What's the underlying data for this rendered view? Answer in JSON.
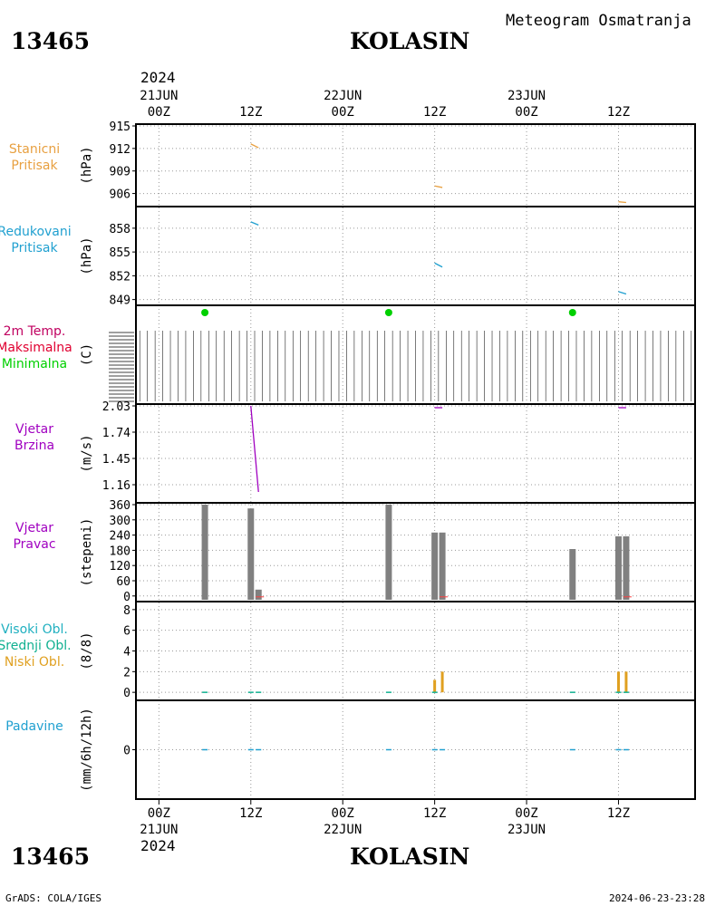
{
  "header": {
    "station_id": "13465",
    "station_name": "KOLASIN",
    "product": "Meteogram Osmatranja",
    "year": "2024"
  },
  "footer": {
    "station_id": "13465",
    "station_name": "KOLASIN",
    "credit": "GrADS: COLA/IGES",
    "timestamp": "2024-06-23-23:28",
    "year": "2024"
  },
  "colors": {
    "pressure_station": "#e8a040",
    "pressure_reduced": "#20a0d0",
    "temp_label": "#c00060",
    "temp_max": "#e00030",
    "temp_min": "#00d000",
    "wind": "#a000c0",
    "wind_dir_bar": "#808080",
    "wind_dir_red": "#ff4040",
    "cloud_high": "#20b0c0",
    "cloud_mid": "#10b090",
    "cloud_low": "#e0a020",
    "precip": "#20a0d0"
  },
  "chart_data": {
    "type": "line",
    "time_axis": {
      "top_labels": [
        {
          "hour": "00Z",
          "date": "21JUN"
        },
        {
          "hour": "12Z",
          "date": ""
        },
        {
          "hour": "00Z",
          "date": "22JUN"
        },
        {
          "hour": "12Z",
          "date": ""
        },
        {
          "hour": "00Z",
          "date": "23JUN"
        },
        {
          "hour": "12Z",
          "date": ""
        }
      ],
      "bottom_labels": [
        {
          "hour": "00Z",
          "date": "21JUN"
        },
        {
          "hour": "12Z",
          "date": ""
        },
        {
          "hour": "00Z",
          "date": "22JUN"
        },
        {
          "hour": "12Z",
          "date": ""
        },
        {
          "hour": "00Z",
          "date": "23JUN"
        },
        {
          "hour": "12Z",
          "date": ""
        }
      ],
      "range_hours": [
        -3,
        70
      ],
      "tick_hours": [
        0,
        12,
        24,
        36,
        48,
        60
      ]
    },
    "panels": [
      {
        "id": "station-pressure",
        "labels": [
          "Stanicni",
          "Pritisak"
        ],
        "label_colors": [
          "pressure_station",
          "pressure_station"
        ],
        "unit": "(hPa)",
        "ylim": [
          904.5,
          915
        ],
        "yticks": [
          "906",
          "909",
          "912",
          "915"
        ],
        "ytick_values": [
          906,
          909,
          912,
          915
        ],
        "series": [
          {
            "color": "pressure_station",
            "segments": [
              [
                [
                  12,
                  912.6
                ],
                [
                  13,
                  912.1
                ]
              ],
              [
                [
                  36,
                  907.0
                ],
                [
                  37,
                  906.8
                ]
              ],
              [
                [
                  60,
                  904.9
                ],
                [
                  61,
                  904.8
                ]
              ]
            ]
          }
        ]
      },
      {
        "id": "reduced-pressure",
        "labels": [
          "Redukovani",
          "Pritisak"
        ],
        "label_colors": [
          "pressure_reduced",
          "pressure_reduced"
        ],
        "unit": "(hPa)",
        "ylim": [
          848.5,
          860.5
        ],
        "yticks": [
          "849",
          "852",
          "855",
          "858"
        ],
        "ytick_values": [
          849,
          852,
          855,
          858
        ],
        "series": [
          {
            "color": "pressure_reduced",
            "segments": [
              [
                [
                  12,
                  858.8
                ],
                [
                  13,
                  858.4
                ]
              ],
              [
                [
                  36,
                  853.6
                ],
                [
                  37,
                  853.1
                ]
              ],
              [
                [
                  60,
                  850.0
                ],
                [
                  61,
                  849.7
                ]
              ]
            ]
          }
        ]
      },
      {
        "id": "temperature",
        "labels": [
          "2m Temp.",
          "Maksimalna",
          "Minimalna"
        ],
        "label_colors": [
          "temp_label",
          "temp_max",
          "temp_min"
        ],
        "unit": "(C)",
        "min_points_hours": [
          6,
          30,
          54
        ]
      },
      {
        "id": "wind-speed",
        "labels": [
          "Vjetar",
          "Brzina"
        ],
        "label_colors": [
          "wind",
          "wind"
        ],
        "unit": "(m/s)",
        "ylim": [
          0.98,
          2.03
        ],
        "yticks": [
          "1.16",
          "1.45",
          "1.74",
          "2.03"
        ],
        "ytick_values": [
          1.16,
          1.45,
          1.74,
          2.03
        ],
        "series": [
          {
            "color": "wind",
            "segments": [
              [
                [
                  12,
                  2.03
                ],
                [
                  13,
                  1.08
                ]
              ],
              [
                [
                  36,
                  2.01
                ],
                [
                  37,
                  2.01
                ]
              ],
              [
                [
                  60,
                  2.01
                ],
                [
                  61,
                  2.01
                ]
              ]
            ]
          }
        ]
      },
      {
        "id": "wind-direction",
        "labels": [
          "Vjetar",
          "Pravac"
        ],
        "label_colors": [
          "wind",
          "wind"
        ],
        "unit": "(stepeni)",
        "ylim": [
          -15,
          360
        ],
        "yticks": [
          "0",
          "60",
          "120",
          "180",
          "240",
          "300",
          "360"
        ],
        "ytick_values": [
          0,
          60,
          120,
          180,
          240,
          300,
          360
        ],
        "bars": [
          {
            "x": 6,
            "value": 360
          },
          {
            "x": 12,
            "value": 345
          },
          {
            "x": 13,
            "value": 25
          },
          {
            "x": 30,
            "value": 360
          },
          {
            "x": 36,
            "value": 250
          },
          {
            "x": 37,
            "value": 250
          },
          {
            "x": 54,
            "value": 185
          },
          {
            "x": 60,
            "value": 235
          },
          {
            "x": 61,
            "value": 235
          }
        ]
      },
      {
        "id": "clouds",
        "labels": [
          "Visoki Obl.",
          "Srednji Obl.",
          "Niski Obl."
        ],
        "label_colors": [
          "cloud_high",
          "cloud_mid",
          "cloud_low"
        ],
        "unit": "(8/8)",
        "ylim": [
          -0.6,
          8.6
        ],
        "yticks": [
          "0",
          "2",
          "4",
          "6",
          "8"
        ],
        "ytick_values": [
          0,
          2,
          4,
          6,
          8
        ],
        "bars": [
          {
            "x": 36,
            "value": 1.2
          },
          {
            "x": 37,
            "value": 2.0
          },
          {
            "x": 60,
            "value": 2.0
          },
          {
            "x": 61,
            "value": 2.0
          }
        ],
        "zero_marks_hours": [
          6,
          12,
          13,
          30,
          36,
          54,
          60,
          61
        ]
      },
      {
        "id": "precipitation",
        "labels": [
          "Padavine"
        ],
        "label_colors": [
          "precip"
        ],
        "unit": "(mm/6h/12h)",
        "yticks": [
          "0"
        ],
        "ytick_values": [
          0
        ],
        "ylim": [
          -5,
          5
        ],
        "zero_marks_hours": [
          6,
          12,
          13,
          30,
          36,
          37,
          54,
          60,
          61
        ]
      }
    ]
  }
}
